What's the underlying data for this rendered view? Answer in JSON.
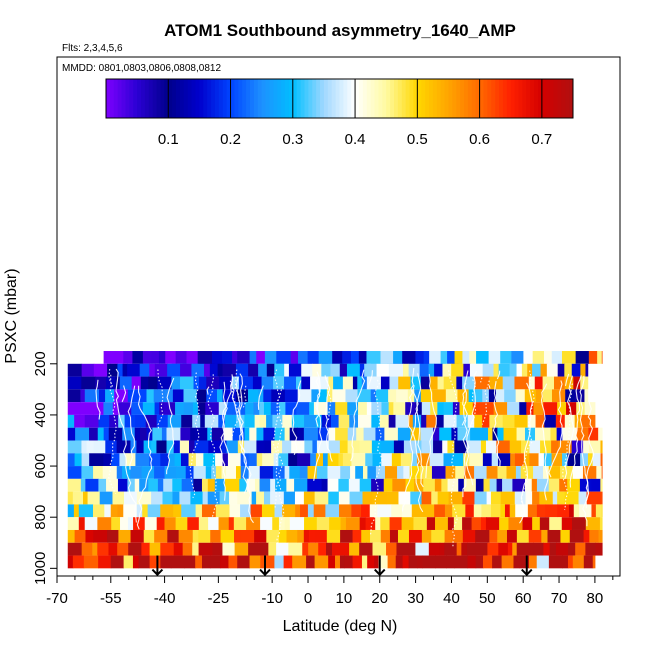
{
  "chart_data": {
    "type": "heatmap",
    "title": "ATOM1 Southbound asymmetry_1640_AMP",
    "subtitle_flights": "Flts: 2,3,4,5,6",
    "subtitle_dates": "MMDD: 0801,0803,0806,0808,0812",
    "xlabel": "Latitude (deg N)",
    "ylabel": "PSXC (mbar)",
    "xlim": [
      -70,
      87
    ],
    "ylim": [
      1030,
      -1000
    ],
    "x_ticks": [
      -70,
      -55,
      -40,
      -25,
      -10,
      0,
      10,
      20,
      30,
      40,
      50,
      60,
      70,
      80
    ],
    "x_tick_labels": [
      "-70",
      "-55",
      "-40",
      "-25",
      "-10",
      "0",
      "10",
      "20",
      "30",
      "40",
      "50",
      "60",
      "70",
      "80"
    ],
    "y_ticks": [
      200,
      400,
      600,
      800,
      1000
    ],
    "y_tick_labels": [
      "200",
      "400",
      "600",
      "800",
      "1000"
    ],
    "colorbar": {
      "range": [
        0.0,
        0.75
      ],
      "ticks": [
        0.1,
        0.2,
        0.3,
        0.4,
        0.5,
        0.6,
        0.7
      ],
      "tick_labels": [
        "0.1",
        "0.2",
        "0.3",
        "0.4",
        "0.5",
        "0.6",
        "0.7"
      ],
      "colors": [
        "#7f00ff",
        "#2b00d4",
        "#00008b",
        "#0000cd",
        "#0044ff",
        "#1e90ff",
        "#00bfff",
        "#a0d8ff",
        "#ffffff",
        "#fffaa0",
        "#ffd700",
        "#ffa500",
        "#ff6a00",
        "#ff2000",
        "#d40000",
        "#b01010"
      ]
    },
    "levels_mbar": [
      175,
      225,
      275,
      325,
      375,
      425,
      475,
      525,
      575,
      625,
      675,
      725,
      775,
      825,
      875,
      925,
      975
    ],
    "lat_coverage": [
      [
        -57,
        82
      ],
      [
        -67,
        78
      ],
      [
        -67,
        78
      ],
      [
        -67,
        78
      ],
      [
        -67,
        80
      ],
      [
        -67,
        80
      ],
      [
        -67,
        82
      ],
      [
        -67,
        82
      ],
      [
        -67,
        82
      ],
      [
        -67,
        82
      ],
      [
        -67,
        82
      ],
      [
        -67,
        82
      ],
      [
        -67,
        82
      ],
      [
        -67,
        82
      ],
      [
        -67,
        82
      ],
      [
        -67,
        82
      ],
      [
        -67,
        80
      ]
    ],
    "top_band": {
      "x": [
        -47,
        42
      ],
      "p": [
        160,
        210
      ]
    },
    "profile_arrows_lat": [
      -42,
      -12,
      20,
      61
    ],
    "z_profile_by_level": [
      0.24,
      0.28,
      0.32,
      0.33,
      0.34,
      0.36,
      0.34,
      0.36,
      0.38,
      0.4,
      0.42,
      0.44,
      0.5,
      0.56,
      0.62,
      0.68,
      0.72
    ],
    "z_gradient_south_to_north": [
      0.25,
      0.26,
      0.27,
      0.24,
      0.24,
      0.22,
      0.18,
      0.14,
      0.12,
      0.1,
      0.1,
      0.08,
      0.06,
      0.04,
      0.02,
      0.0,
      0.0
    ]
  }
}
